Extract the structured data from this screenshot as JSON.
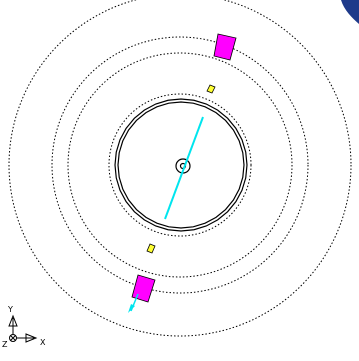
{
  "diagram": {
    "view": "top",
    "colors": {
      "background": "#ffffff",
      "wheel": "#000000",
      "orbit": "#000000",
      "shaft": "#00e5ee",
      "magenta_part": "#ff00ff",
      "yellow_part": "#ffff33",
      "corner_shape": "#1e3a8a"
    },
    "wheel": {
      "segments": 32,
      "style": "double-line polygon"
    },
    "orbits": {
      "count": 4,
      "style": "dotted"
    }
  },
  "axis_triad": {
    "x_label": "X",
    "y_label": "Y",
    "z_label": "Z",
    "icon": "coordinate-triad-icon"
  }
}
